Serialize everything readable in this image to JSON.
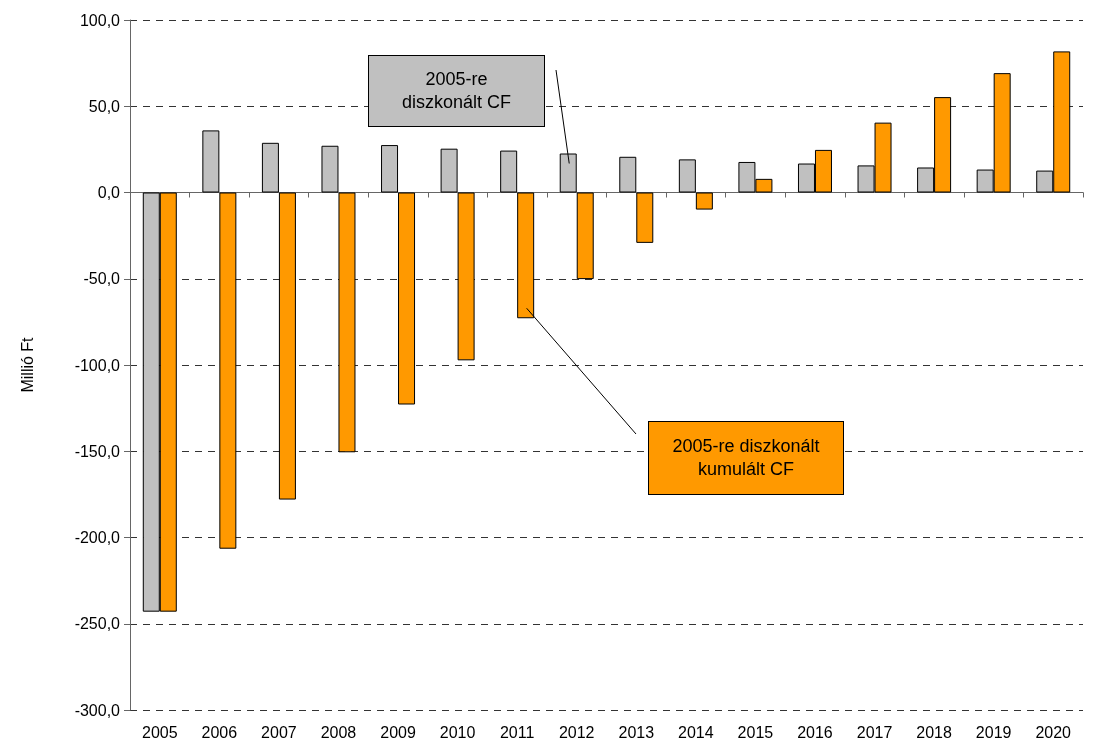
{
  "chart_data": {
    "type": "bar",
    "categories": [
      "2005",
      "2006",
      "2007",
      "2008",
      "2009",
      "2010",
      "2011",
      "2012",
      "2013",
      "2014",
      "2015",
      "2016",
      "2017",
      "2018",
      "2019",
      "2020"
    ],
    "series": [
      {
        "color": "#c0c0c0",
        "values": [
          -243,
          36,
          28.8,
          27.1,
          27.5,
          25.4,
          24.3,
          22.6,
          20.7,
          19.2,
          17.7,
          16.8,
          15.7,
          14.5,
          13.3,
          12.7
        ]
      },
      {
        "color": "#ff9900",
        "values": [
          -243,
          -206.5,
          -178,
          -150.6,
          -122.9,
          -97.3,
          -72.9,
          -50.2,
          -29.2,
          -9.9,
          7.9,
          24.7,
          40.5,
          55.3,
          69.2,
          81.8
        ]
      }
    ],
    "annotations": [
      "2005-re diszkonált CF",
      "2005-re diszkonált kumulált CF"
    ],
    "ylabel": "Millió Ft",
    "ylim": [
      -300,
      100
    ],
    "yticks": [
      {
        "value": -300,
        "label": "-300,0"
      },
      {
        "value": -250,
        "label": "-250,0"
      },
      {
        "value": -200,
        "label": "-200,0"
      },
      {
        "value": -150,
        "label": "-150,0"
      },
      {
        "value": -100,
        "label": "-100,0"
      },
      {
        "value": -50,
        "label": "-50,0"
      },
      {
        "value": 0,
        "label": "0,0"
      },
      {
        "value": 50,
        "label": "50,0"
      },
      {
        "value": 100,
        "label": "100,0"
      }
    ],
    "grid": "y"
  }
}
